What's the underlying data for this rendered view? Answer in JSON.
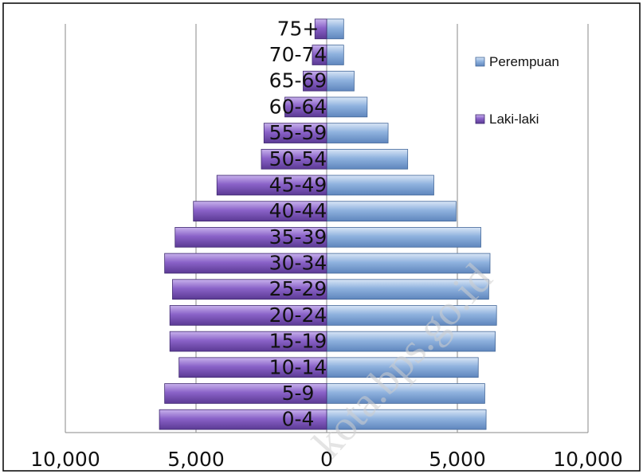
{
  "chart_data": {
    "type": "bar",
    "orientation": "horizontal-pyramid",
    "categories": [
      "0-4",
      "5-9",
      "10-14",
      "15-19",
      "20-24",
      "25-29",
      "30-34",
      "35-39",
      "40-44",
      "45-49",
      "50-54",
      "55-59",
      "60-64",
      "65-69",
      "70-74",
      "75+"
    ],
    "series": [
      {
        "name": "Perempuan",
        "side": "right",
        "color": "#8fb2de",
        "values": [
          6100,
          6050,
          5800,
          6450,
          6500,
          6200,
          6250,
          5900,
          4950,
          4100,
          3100,
          2350,
          1550,
          1050,
          650,
          650
        ]
      },
      {
        "name": "Laki-laki",
        "side": "left",
        "color": "#8a62c8",
        "values": [
          6400,
          6200,
          5650,
          6000,
          6000,
          5900,
          6200,
          5800,
          5100,
          4200,
          2500,
          2400,
          1600,
          900,
          550,
          450
        ]
      }
    ],
    "xlim": [
      -10000,
      10000
    ],
    "xticks": [
      {
        "value": -10000,
        "label": "10,000"
      },
      {
        "value": -5000,
        "label": "5,000"
      },
      {
        "value": 0,
        "label": "0"
      },
      {
        "value": 5000,
        "label": "5,000"
      },
      {
        "value": 10000,
        "label": "10,000"
      }
    ],
    "grid": "vertical",
    "legend": "right",
    "title": "",
    "xlabel": "",
    "ylabel": ""
  },
  "watermark": "kota.bps.go.id"
}
